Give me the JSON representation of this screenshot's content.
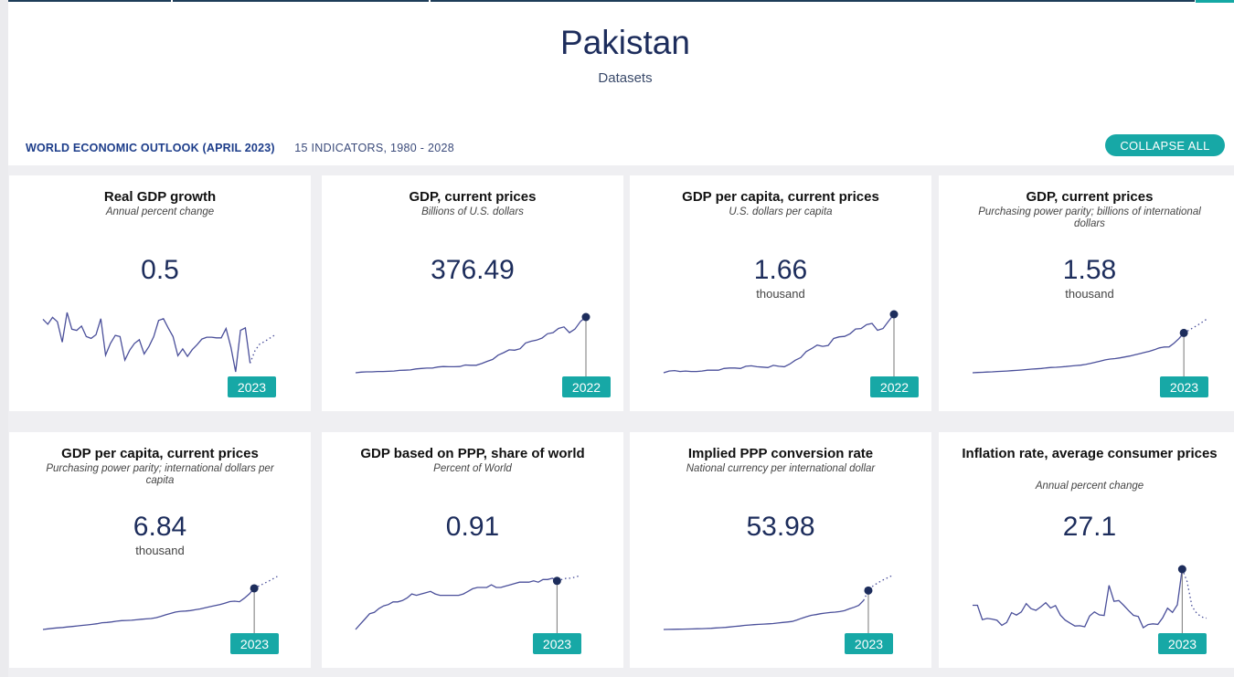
{
  "page": {
    "title": "Pakistan",
    "subtitle": "Datasets"
  },
  "section": {
    "title": "WORLD ECONOMIC OUTLOOK (APRIL 2023)",
    "meta": "15 INDICATORS, 1980 - 2028",
    "collapse_label": "COLLAPSE ALL"
  },
  "colors": {
    "accent": "#17a8a6",
    "line": "#4a4f9a",
    "dot": "#1d2d5c",
    "title_text": "#1d2d5c"
  },
  "cards": [
    {
      "title": "Real GDP growth",
      "subtitle": "Annual percent change",
      "value": "0.5",
      "unit": "",
      "year": "2023",
      "chart_data": {
        "type": "line",
        "x_start": 1980,
        "x_end": 2028,
        "highlight": 2023,
        "values": [
          7.6,
          6.8,
          7.9,
          7.2,
          3.9,
          8.7,
          6.0,
          5.8,
          6.5,
          4.8,
          4.5,
          5.1,
          7.7,
          1.8,
          3.7,
          5.0,
          4.8,
          1.0,
          2.6,
          3.7,
          4.3,
          2.0,
          3.2,
          4.8,
          7.4,
          7.7,
          6.2,
          4.8,
          1.7,
          2.8,
          1.6,
          2.7,
          3.5,
          4.4,
          4.7,
          4.7,
          4.6,
          4.6,
          6.1,
          3.1,
          -0.9,
          5.8,
          6.2,
          0.5,
          2.5,
          3.6,
          4.0,
          4.5,
          5.0
        ],
        "projection_from": 2023
      }
    },
    {
      "title": "GDP, current prices",
      "subtitle": "Billions of U.S. dollars",
      "value": "376.49",
      "unit": "",
      "year": "2022",
      "chart_data": {
        "type": "line",
        "x_start": 1980,
        "x_end": 2022,
        "highlight": 2022,
        "values": [
          26,
          30,
          32,
          32,
          34,
          34,
          35,
          37,
          41,
          42,
          44,
          50,
          53,
          55,
          55,
          62,
          65,
          64,
          64,
          65,
          75,
          73,
          73,
          84,
          98,
          110,
          137,
          152,
          170,
          168,
          177,
          213,
          224,
          231,
          244,
          271,
          278,
          304,
          314,
          278,
          300,
          348,
          376
        ],
        "projection_from": null
      }
    },
    {
      "title": "GDP per capita, current prices",
      "subtitle": "U.S. dollars per capita",
      "value": "1.66",
      "unit": "thousand",
      "year": "2022",
      "chart_data": {
        "type": "line",
        "x_start": 1980,
        "x_end": 2022,
        "highlight": 2022,
        "values": [
          310,
          350,
          360,
          340,
          350,
          340,
          340,
          350,
          370,
          370,
          370,
          410,
          420,
          420,
          410,
          460,
          470,
          450,
          440,
          430,
          480,
          460,
          450,
          510,
          600,
          660,
          800,
          870,
          950,
          920,
          940,
          1100,
          1140,
          1150,
          1210,
          1320,
          1330,
          1420,
          1450,
          1290,
          1330,
          1500,
          1660
        ],
        "projection_from": null
      }
    },
    {
      "title": "GDP, current prices",
      "subtitle": "Purchasing power parity; billions of international dollars",
      "value": "1.58",
      "unit": "thousand",
      "year": "2023",
      "chart_data": {
        "type": "line",
        "x_start": 1980,
        "x_end": 2028,
        "highlight": 2023,
        "values": [
          65,
          75,
          84,
          93,
          100,
          112,
          122,
          132,
          145,
          156,
          170,
          185,
          205,
          215,
          230,
          248,
          266,
          275,
          287,
          303,
          323,
          338,
          355,
          380,
          420,
          465,
          510,
          555,
          585,
          605,
          630,
          665,
          700,
          745,
          790,
          835,
          880,
          940,
          1010,
          1045,
          1050,
          1190,
          1365,
          1580,
          1680,
          1790,
          1900,
          2020,
          2150
        ],
        "projection_from": 2023
      }
    },
    {
      "title": "GDP per capita, current prices",
      "subtitle": "Purchasing power parity; international dollars per capita",
      "value": "6.84",
      "unit": "thousand",
      "year": "2023",
      "chart_data": {
        "type": "line",
        "x_start": 1980,
        "x_end": 2028,
        "highlight": 2023,
        "values": [
          780,
          870,
          950,
          1020,
          1070,
          1160,
          1230,
          1300,
          1390,
          1450,
          1540,
          1630,
          1770,
          1820,
          1900,
          2000,
          2090,
          2110,
          2140,
          2200,
          2290,
          2340,
          2400,
          2520,
          2720,
          2940,
          3150,
          3350,
          3460,
          3500,
          3560,
          3690,
          3810,
          3980,
          4140,
          4290,
          4440,
          4650,
          4880,
          4950,
          4870,
          5400,
          6030,
          6840,
          7200,
          7560,
          7920,
          8310,
          8720
        ],
        "projection_from": 2023
      }
    },
    {
      "title": "GDP based on PPP, share of world",
      "subtitle": "Percent of World",
      "value": "0.91",
      "unit": "",
      "year": "2023",
      "chart_data": {
        "type": "line",
        "x_start": 1980,
        "x_end": 2028,
        "highlight": 2023,
        "values": [
          0.54,
          0.58,
          0.62,
          0.66,
          0.67,
          0.7,
          0.72,
          0.73,
          0.75,
          0.75,
          0.76,
          0.78,
          0.81,
          0.8,
          0.81,
          0.82,
          0.83,
          0.81,
          0.8,
          0.8,
          0.8,
          0.8,
          0.8,
          0.81,
          0.83,
          0.85,
          0.86,
          0.86,
          0.86,
          0.88,
          0.86,
          0.86,
          0.87,
          0.88,
          0.89,
          0.9,
          0.9,
          0.9,
          0.91,
          0.9,
          0.92,
          0.92,
          0.93,
          0.91,
          0.92,
          0.93,
          0.93,
          0.94,
          0.95
        ],
        "projection_from": 2023
      }
    },
    {
      "title": "Implied PPP conversion rate",
      "subtitle": "National currency per international dollar",
      "value": "53.98",
      "unit": "",
      "year": "2023",
      "chart_data": {
        "type": "line",
        "x_start": 1980,
        "x_end": 2028,
        "highlight": 2023,
        "values": [
          2.9,
          3.0,
          3.1,
          3.3,
          3.4,
          3.5,
          3.6,
          3.8,
          4.0,
          4.2,
          4.5,
          4.9,
          5.3,
          5.7,
          6.3,
          7.0,
          7.5,
          8.3,
          8.8,
          9.2,
          9.6,
          10.0,
          10.3,
          10.7,
          11.4,
          12.1,
          12.7,
          13.4,
          15.4,
          17.6,
          19.6,
          21.5,
          22.4,
          23.6,
          24.4,
          25.2,
          25.6,
          26.4,
          27.5,
          30.0,
          32.0,
          34.5,
          41.0,
          53.98,
          60.0,
          64.0,
          67.5,
          70.5,
          73.5
        ],
        "projection_from": 2022
      }
    },
    {
      "title": "Inflation rate, average consumer prices",
      "subtitle": "Annual percent change",
      "value": "27.1",
      "unit": "",
      "year": "2023",
      "chart_data": {
        "type": "line",
        "x_start": 1980,
        "x_end": 2028,
        "highlight": 2023,
        "values": [
          11.9,
          11.9,
          5.9,
          6.4,
          6.1,
          5.6,
          3.5,
          4.7,
          8.8,
          7.8,
          9.1,
          12.6,
          10.5,
          9.8,
          11.3,
          13.0,
          10.8,
          11.8,
          7.8,
          5.7,
          4.4,
          3.2,
          3.3,
          2.9,
          7.4,
          9.1,
          7.9,
          7.6,
          20.3,
          13.6,
          13.9,
          11.9,
          9.7,
          7.7,
          7.2,
          2.5,
          3.8,
          4.1,
          3.9,
          6.7,
          10.7,
          8.9,
          12.1,
          27.1,
          21.9,
          11.5,
          8.5,
          7.0,
          6.5
        ],
        "projection_from": 2023
      }
    }
  ]
}
